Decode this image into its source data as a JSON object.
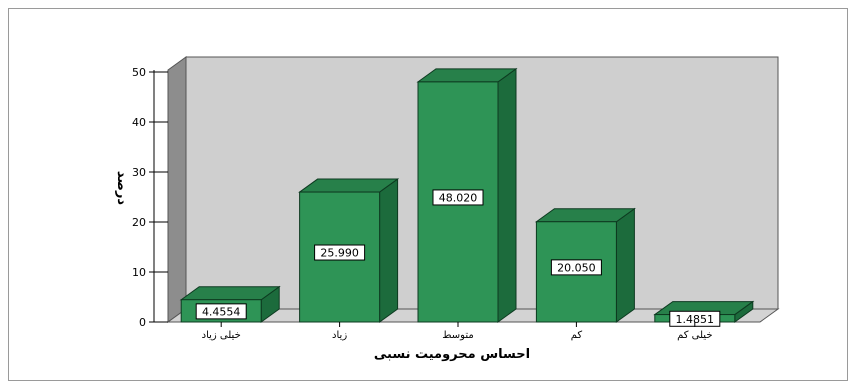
{
  "chart_data": {
    "type": "bar",
    "title": "",
    "xlabel": "احساس محرومیت نسبی",
    "ylabel": "درصد",
    "categories": [
      "خیلی زیاد",
      "زیاد",
      "متوسط",
      "کم",
      "خیلی کم"
    ],
    "values": [
      4.4554,
      25.99,
      48.02,
      20.05,
      1.4851
    ],
    "value_labels": [
      "4.4554",
      "25.990",
      "48.020",
      "20.050",
      "1.4851"
    ],
    "ylim": [
      0,
      50
    ],
    "yticks": [
      0,
      10,
      20,
      30,
      40,
      50
    ],
    "grid": false,
    "three_d": true,
    "colors": {
      "bar_front": "#2e9456",
      "bar_side": "#1c6b3c",
      "bar_top": "#27804a",
      "wall": "#cfcfcf",
      "floor": "#d3d3d3",
      "side_wall": "#8d8d8d"
    }
  }
}
